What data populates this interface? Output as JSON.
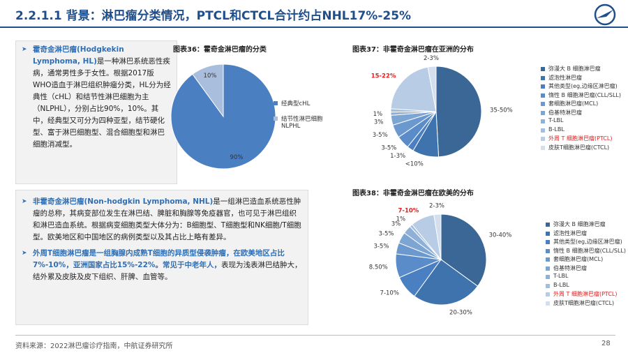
{
  "header": {
    "title": "2.2.1.1 背景：淋巴瘤分类情况，PTCL和CTCL合计约占NHL17%-25%"
  },
  "left": {
    "box1": [
      {
        "text": "霍奇金淋巴瘤(Hodgkekin Lymphoma, HL)",
        "em": true
      },
      {
        "text": "是一种淋巴系统恶性疾病，通常男性多于女性。根据2017版WHO造血于淋巴组织肿瘤分类，HL分为经典性（cHL）和结节性淋巴细胞为主（NLPHL），分别占比90%，10%。其中，经典型又可分为四种亚型，结节硬化型、富于淋巴细胞型、混合细胞型和淋巴细胞消减型。",
        "em": false
      }
    ],
    "box2": [
      [
        {
          "text": "非霍奇金淋巴瘤(Non-hodgkin Lymphoma, NHL)",
          "em": true
        },
        {
          "text": "是一组淋巴造血系统恶性肿瘤的总称，其病变部位发生在淋巴结、脾脏和胸腺等免疫器官，也可见于淋巴组织和淋巴造血系统。根据病变细胞类型大体分为：B细胞型、T细胞型和NK细胞/T细胞型。欧美地区和中国地区的病例类型以及其占比上略有差异。",
          "em": false
        }
      ],
      [
        {
          "text": "外周T细胞淋巴瘤是一组胸腺内成熟T细胞的异质型侵袭肿瘤，在欧美地区占比7%-10%，亚洲国家占比15%-22%。常见于中老年人，",
          "em": true
        },
        {
          "text": "表现为浅表淋巴结肿大，结外累及皮肤及皮下组织、肝脾、血管等。",
          "em": false
        }
      ]
    ]
  },
  "footer": {
    "source": "资料来源：2022淋巴瘤诊疗指南，中航证券研究所",
    "page": "28"
  },
  "chart_data": [
    {
      "type": "pie",
      "title": "图表36：霍奇金淋巴瘤的分类",
      "categories": [
        "经典型cHL",
        "结节性淋巴细胞NLPHL"
      ],
      "values": [
        90,
        10
      ],
      "value_labels": [
        "90%",
        "10%"
      ],
      "colors": [
        "#4a7fc1",
        "#a9bedd"
      ]
    },
    {
      "type": "pie",
      "title": "图表37：非霍奇金淋巴瘤在亚洲的分布",
      "categories": [
        "弥漫大 B 细胞淋巴瘤",
        "滤泡性淋巴瘤",
        "其他类型(eg,边缘区淋巴瘤)",
        "惰性 B 细胞淋巴瘤(CLL/SLL)",
        "套细胞淋巴瘤(MCL)",
        "伯基特淋巴瘤",
        "T-LBL",
        "B-LBL",
        "外周 T 细胞淋巴瘤(PTCL)",
        "皮肤T细胞淋巴瘤(CTCL)"
      ],
      "values": [
        42,
        8,
        2,
        4,
        4,
        3,
        1,
        1,
        18,
        2.5
      ],
      "value_labels": [
        "35-50%",
        "<10%",
        "1-3%",
        "3-5%",
        "3-5%",
        "3%",
        "1%",
        null,
        "15-22%",
        "2-3%"
      ],
      "colors": [
        "#3a6796",
        "#3f73ad",
        "#4a7fc1",
        "#5a8cc9",
        "#6b98cf",
        "#7da5d4",
        "#8fb1d9",
        "#a1bede",
        "#b8cce6",
        "#d3deee"
      ],
      "legend_text_colors": [
        "#333333",
        "#333333",
        "#333333",
        "#333333",
        "#333333",
        "#333333",
        "#333333",
        "#333333",
        "#e02020",
        "#333333"
      ]
    },
    {
      "type": "pie",
      "title": "图表38：非霍奇金淋巴瘤在欧美的分布",
      "categories": [
        "弥漫大 B 细胞淋巴瘤",
        "滤泡性淋巴瘤",
        "其他类型(eg,边缘区淋巴瘤)",
        "惰性 B 细胞淋巴瘤(CLL/SLL)",
        "套细胞淋巴瘤(MCL)",
        "伯基特淋巴瘤",
        "T-LBL",
        "B-LBL",
        "外周 T 细胞淋巴瘤(PTCL)",
        "皮肤T细胞淋巴瘤(CTCL)"
      ],
      "values": [
        35,
        25,
        8.5,
        8.5,
        4,
        4,
        3,
        1,
        8.5,
        2.5
      ],
      "value_labels": [
        "30-40%",
        "20-30%",
        "7-10%",
        "8.50%",
        "3-5%",
        "3-5%",
        "3%",
        "1%",
        "7-10%",
        "2-3%"
      ],
      "colors": [
        "#3a6796",
        "#3f73ad",
        "#4a7fc1",
        "#5a8cc9",
        "#6b98cf",
        "#7da5d4",
        "#8fb1d9",
        "#a1bede",
        "#b8cce6",
        "#d3deee"
      ],
      "legend_text_colors": [
        "#333333",
        "#333333",
        "#333333",
        "#333333",
        "#333333",
        "#333333",
        "#333333",
        "#333333",
        "#e02020",
        "#333333"
      ]
    }
  ]
}
